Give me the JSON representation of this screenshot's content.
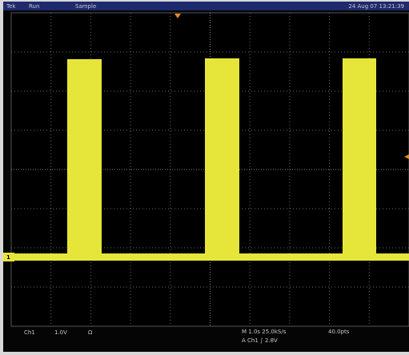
{
  "status_bar": {
    "brand": "Tek",
    "state": "Run",
    "mode": "Sample",
    "timestamp": "24 Aug 07 13:21:39"
  },
  "channel_marker": "1",
  "readout": {
    "channel": "Ch1",
    "volts_per_div": "1.0V",
    "coupling": "Ω",
    "timebase": "M 1.0s 25.0kS/s",
    "trigger": "A Ch1 ∫ 2.8V",
    "record": "40.0pts"
  }
}
